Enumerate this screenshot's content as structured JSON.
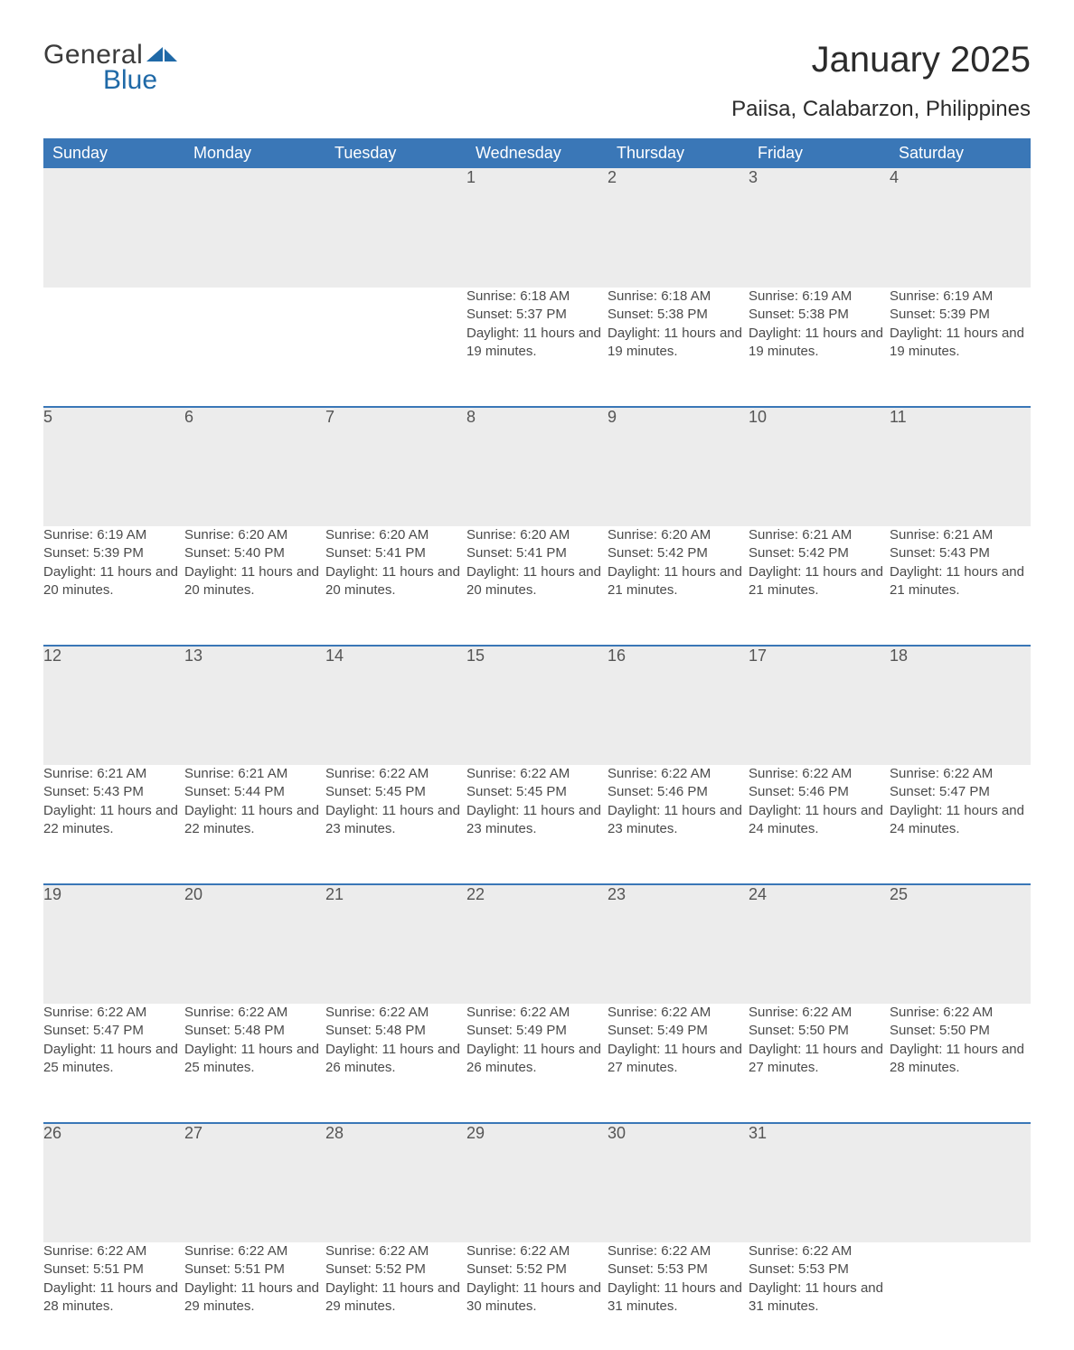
{
  "brand": {
    "word1": "General",
    "word2": "Blue"
  },
  "title": "January 2025",
  "subtitle": "Paiisa, Calabarzon, Philippines",
  "colors": {
    "accent": "#3a77b7",
    "header_bg": "#3a77b7",
    "dayrow_bg": "#ececec",
    "page_bg": "#ffffff",
    "text": "#2f2f2f"
  },
  "weekdays": [
    "Sunday",
    "Monday",
    "Tuesday",
    "Wednesday",
    "Thursday",
    "Friday",
    "Saturday"
  ],
  "first_weekday_index": 3,
  "days": [
    {
      "n": 1,
      "sunrise": "6:18 AM",
      "sunset": "5:37 PM",
      "daylight": "11 hours and 19 minutes."
    },
    {
      "n": 2,
      "sunrise": "6:18 AM",
      "sunset": "5:38 PM",
      "daylight": "11 hours and 19 minutes."
    },
    {
      "n": 3,
      "sunrise": "6:19 AM",
      "sunset": "5:38 PM",
      "daylight": "11 hours and 19 minutes."
    },
    {
      "n": 4,
      "sunrise": "6:19 AM",
      "sunset": "5:39 PM",
      "daylight": "11 hours and 19 minutes."
    },
    {
      "n": 5,
      "sunrise": "6:19 AM",
      "sunset": "5:39 PM",
      "daylight": "11 hours and 20 minutes."
    },
    {
      "n": 6,
      "sunrise": "6:20 AM",
      "sunset": "5:40 PM",
      "daylight": "11 hours and 20 minutes."
    },
    {
      "n": 7,
      "sunrise": "6:20 AM",
      "sunset": "5:41 PM",
      "daylight": "11 hours and 20 minutes."
    },
    {
      "n": 8,
      "sunrise": "6:20 AM",
      "sunset": "5:41 PM",
      "daylight": "11 hours and 20 minutes."
    },
    {
      "n": 9,
      "sunrise": "6:20 AM",
      "sunset": "5:42 PM",
      "daylight": "11 hours and 21 minutes."
    },
    {
      "n": 10,
      "sunrise": "6:21 AM",
      "sunset": "5:42 PM",
      "daylight": "11 hours and 21 minutes."
    },
    {
      "n": 11,
      "sunrise": "6:21 AM",
      "sunset": "5:43 PM",
      "daylight": "11 hours and 21 minutes."
    },
    {
      "n": 12,
      "sunrise": "6:21 AM",
      "sunset": "5:43 PM",
      "daylight": "11 hours and 22 minutes."
    },
    {
      "n": 13,
      "sunrise": "6:21 AM",
      "sunset": "5:44 PM",
      "daylight": "11 hours and 22 minutes."
    },
    {
      "n": 14,
      "sunrise": "6:22 AM",
      "sunset": "5:45 PM",
      "daylight": "11 hours and 23 minutes."
    },
    {
      "n": 15,
      "sunrise": "6:22 AM",
      "sunset": "5:45 PM",
      "daylight": "11 hours and 23 minutes."
    },
    {
      "n": 16,
      "sunrise": "6:22 AM",
      "sunset": "5:46 PM",
      "daylight": "11 hours and 23 minutes."
    },
    {
      "n": 17,
      "sunrise": "6:22 AM",
      "sunset": "5:46 PM",
      "daylight": "11 hours and 24 minutes."
    },
    {
      "n": 18,
      "sunrise": "6:22 AM",
      "sunset": "5:47 PM",
      "daylight": "11 hours and 24 minutes."
    },
    {
      "n": 19,
      "sunrise": "6:22 AM",
      "sunset": "5:47 PM",
      "daylight": "11 hours and 25 minutes."
    },
    {
      "n": 20,
      "sunrise": "6:22 AM",
      "sunset": "5:48 PM",
      "daylight": "11 hours and 25 minutes."
    },
    {
      "n": 21,
      "sunrise": "6:22 AM",
      "sunset": "5:48 PM",
      "daylight": "11 hours and 26 minutes."
    },
    {
      "n": 22,
      "sunrise": "6:22 AM",
      "sunset": "5:49 PM",
      "daylight": "11 hours and 26 minutes."
    },
    {
      "n": 23,
      "sunrise": "6:22 AM",
      "sunset": "5:49 PM",
      "daylight": "11 hours and 27 minutes."
    },
    {
      "n": 24,
      "sunrise": "6:22 AM",
      "sunset": "5:50 PM",
      "daylight": "11 hours and 27 minutes."
    },
    {
      "n": 25,
      "sunrise": "6:22 AM",
      "sunset": "5:50 PM",
      "daylight": "11 hours and 28 minutes."
    },
    {
      "n": 26,
      "sunrise": "6:22 AM",
      "sunset": "5:51 PM",
      "daylight": "11 hours and 28 minutes."
    },
    {
      "n": 27,
      "sunrise": "6:22 AM",
      "sunset": "5:51 PM",
      "daylight": "11 hours and 29 minutes."
    },
    {
      "n": 28,
      "sunrise": "6:22 AM",
      "sunset": "5:52 PM",
      "daylight": "11 hours and 29 minutes."
    },
    {
      "n": 29,
      "sunrise": "6:22 AM",
      "sunset": "5:52 PM",
      "daylight": "11 hours and 30 minutes."
    },
    {
      "n": 30,
      "sunrise": "6:22 AM",
      "sunset": "5:53 PM",
      "daylight": "11 hours and 31 minutes."
    },
    {
      "n": 31,
      "sunrise": "6:22 AM",
      "sunset": "5:53 PM",
      "daylight": "11 hours and 31 minutes."
    }
  ],
  "labels": {
    "sunrise": "Sunrise:",
    "sunset": "Sunset:",
    "daylight": "Daylight:"
  }
}
